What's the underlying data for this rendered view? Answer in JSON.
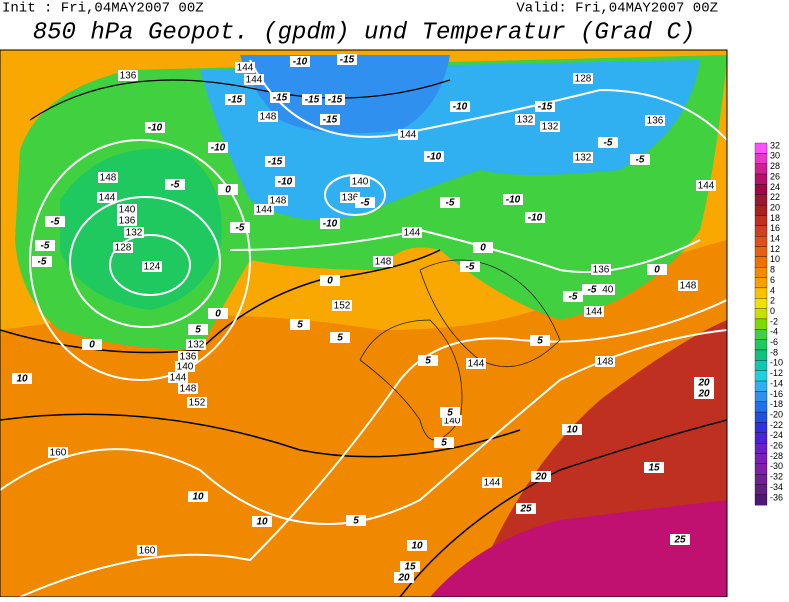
{
  "header": {
    "init": "Init : Fri,04MAY2007 00Z",
    "valid": "Valid: Fri,04MAY2007 00Z",
    "title": "850 hPa Geopot. (gpdm) und Temperatur (Grad C)"
  },
  "colorbar": {
    "labels": [
      32,
      30,
      28,
      26,
      24,
      22,
      20,
      18,
      16,
      14,
      12,
      10,
      8,
      6,
      4,
      2,
      0,
      -2,
      -4,
      -6,
      -8,
      -10,
      -12,
      -14,
      -16,
      -18,
      -20,
      -22,
      -24,
      -26,
      -28,
      -30,
      -32,
      -34,
      -36
    ],
    "colors": [
      "#ff50ff",
      "#e838c8",
      "#d02090",
      "#b8106a",
      "#a00848",
      "#9a1830",
      "#a82020",
      "#c03020",
      "#d04020",
      "#e05018",
      "#e86010",
      "#f07000",
      "#f58a00",
      "#f8a000",
      "#fbc000",
      "#f0e000",
      "#c8e000",
      "#80dc00",
      "#40d040",
      "#20c860",
      "#10c080",
      "#10c8b0",
      "#20d0e0",
      "#30b0f0",
      "#3090f0",
      "#2070f0",
      "#2050e0",
      "#3030e0",
      "#5020d8",
      "#6a20c8",
      "#7a20b8",
      "#8020a8",
      "#702090",
      "#602080",
      "#501870"
    ]
  },
  "contour_labels": {
    "geopotential": [
      136,
      144,
      144,
      148,
      128,
      132,
      132,
      136,
      132,
      144,
      140,
      136,
      144,
      148,
      148,
      144,
      140,
      136,
      132,
      128,
      124,
      144,
      148,
      152,
      132,
      136,
      140,
      144,
      148,
      152,
      144,
      140,
      144,
      160,
      160,
      136,
      140,
      144,
      148,
      148,
      144
    ],
    "temperature": [
      -10,
      -15,
      -15,
      -15,
      -15,
      -15,
      -15,
      -10,
      -10,
      -5,
      0,
      -15,
      -10,
      -5,
      -10,
      -5,
      -10,
      -5,
      -10,
      -15,
      -5,
      -5,
      -10,
      -10,
      -5,
      -5,
      -5,
      0,
      0,
      5,
      5,
      -5,
      0,
      0,
      -5,
      -5,
      0,
      10,
      5,
      5,
      5,
      5,
      5,
      10,
      10,
      5,
      10,
      15,
      20,
      15,
      10,
      20,
      25,
      25,
      20,
      20
    ]
  }
}
